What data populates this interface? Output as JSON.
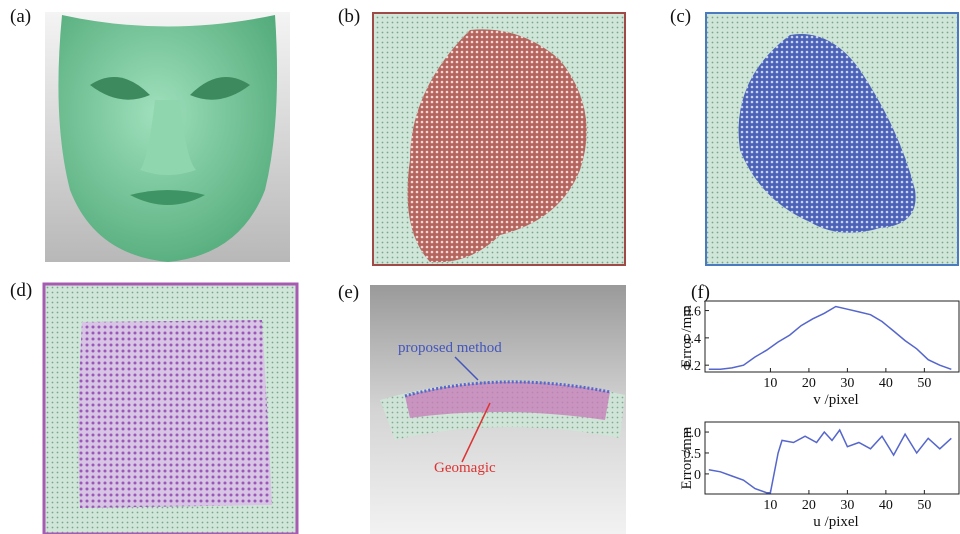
{
  "panels": [
    {
      "label": "(a)"
    },
    {
      "label": "(b)"
    },
    {
      "label": "(c)"
    },
    {
      "label": "(d)"
    },
    {
      "label": "(e)"
    },
    {
      "label": "(f)"
    }
  ],
  "annotations": [
    "proposed method",
    "Geomagic"
  ],
  "chart_data": [
    {
      "type": "line",
      "y_label": "Error /mm",
      "x_label": "v /pixel",
      "x": [
        -6,
        -3,
        0,
        3,
        6,
        9,
        12,
        15,
        18,
        21,
        24,
        27,
        30,
        33,
        36,
        39,
        42,
        45,
        48,
        51,
        54,
        57
      ],
      "series": [
        {
          "color": "#5566cc",
          "values": [
            0.17,
            0.17,
            0.18,
            0.2,
            0.26,
            0.31,
            0.37,
            0.42,
            0.49,
            0.54,
            0.58,
            0.63,
            0.61,
            0.59,
            0.57,
            0.52,
            0.45,
            0.38,
            0.32,
            0.24,
            0.2,
            0.17
          ]
        }
      ],
      "xlim": [
        -7,
        59
      ],
      "ylim": [
        0.15,
        0.67
      ],
      "xticks": [
        10,
        20,
        30,
        40,
        50
      ],
      "yticks": [
        0.2,
        0.4,
        0.6
      ]
    },
    {
      "type": "line",
      "y_label": "Error /mm",
      "x_label": "u /pixel",
      "x": [
        -6,
        -3,
        0,
        3,
        6,
        9,
        10,
        12,
        13,
        16,
        19,
        22,
        24,
        26,
        28,
        30,
        33,
        36,
        39,
        42,
        45,
        48,
        51,
        54,
        57
      ],
      "series": [
        {
          "color": "#5566cc",
          "values": [
            0.1,
            0.05,
            -0.05,
            -0.15,
            -0.35,
            -0.45,
            -0.45,
            0.5,
            0.8,
            0.75,
            0.9,
            0.75,
            1.0,
            0.8,
            1.05,
            0.65,
            0.75,
            0.6,
            0.9,
            0.45,
            0.95,
            0.5,
            0.85,
            0.6,
            0.85
          ]
        }
      ],
      "xlim": [
        -7,
        59
      ],
      "ylim": [
        -0.48,
        1.24
      ],
      "xticks": [
        10,
        20,
        30,
        40,
        50
      ],
      "yticks": [
        {
          "value": 1,
          "label": "1.0"
        },
        0.5,
        0
      ]
    }
  ]
}
